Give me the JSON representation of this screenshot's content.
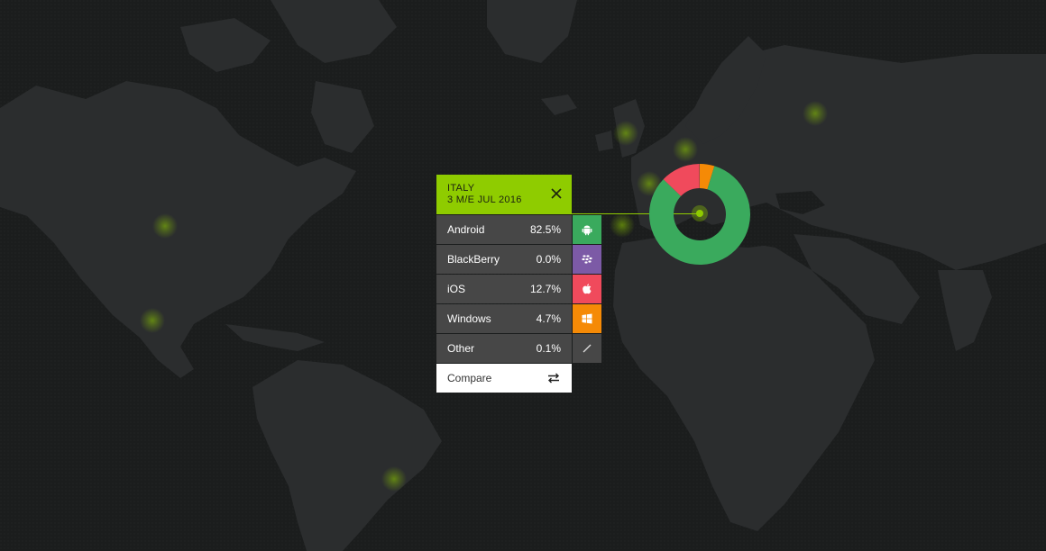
{
  "panel": {
    "country": "ITALY",
    "period": "3 M/E JUL 2016",
    "close_icon": "close-icon",
    "compare_label": "Compare",
    "compare_icon": "swap-arrows-icon"
  },
  "platforms": [
    {
      "name": "Android",
      "share": "82.5%",
      "value": 82.5,
      "color": "#3aaa5d",
      "icon": "android-icon"
    },
    {
      "name": "BlackBerry",
      "share": "0.0%",
      "value": 0.0,
      "color": "#7c5aa6",
      "icon": "blackberry-icon"
    },
    {
      "name": "iOS",
      "share": "12.7%",
      "value": 12.7,
      "color": "#f04a5c",
      "icon": "apple-icon"
    },
    {
      "name": "Windows",
      "share": "4.7%",
      "value": 4.7,
      "color": "#f58a06",
      "icon": "windows-icon"
    },
    {
      "name": "Other",
      "share": "0.1%",
      "value": 0.1,
      "color": "#474747",
      "icon": "slash-icon"
    }
  ],
  "colors": {
    "accent": "#8fcc00",
    "background": "#1b1d1d",
    "land": "#2a2c2d"
  }
}
